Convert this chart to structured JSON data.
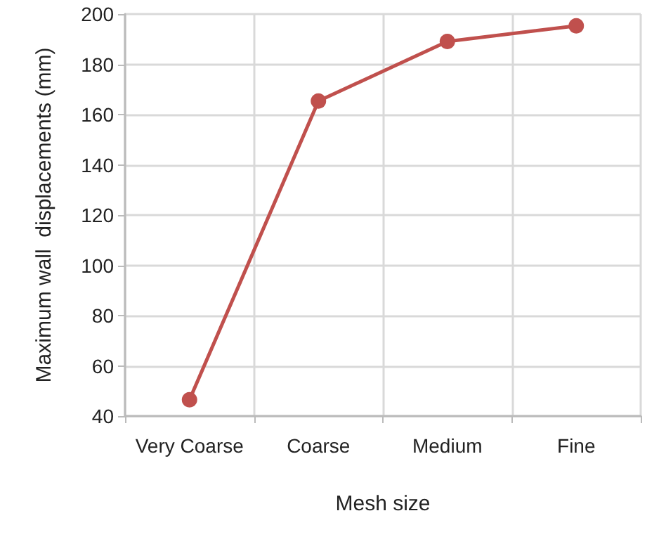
{
  "chart_data": {
    "type": "line",
    "xlabel": "Mesh size",
    "ylabel": "Maximum wall  displacements (mm)",
    "categories": [
      "Very Coarse",
      "Coarse",
      "Medium",
      "Fine"
    ],
    "series": [
      {
        "color": "#c0504d",
        "values": [
          46.5,
          165.4,
          189.1,
          195.3
        ]
      }
    ],
    "ylim": [
      40,
      200
    ],
    "yticks": [
      40,
      60,
      80,
      100,
      120,
      140,
      160,
      180,
      200
    ],
    "grid": true,
    "marker": "circle",
    "line_style": "solid"
  }
}
